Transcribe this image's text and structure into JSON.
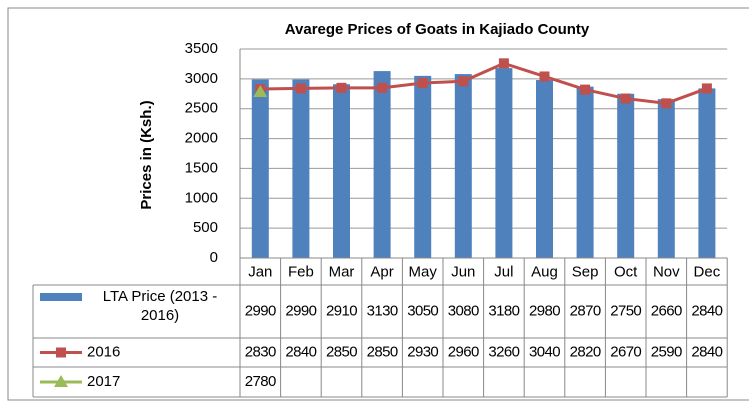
{
  "chart_data": {
    "type": "bar",
    "title": "Avarege Prices of Goats in Kajiado County",
    "y_label": "Prices in (Ksh.)",
    "categories": [
      "Jan",
      "Feb",
      "Mar",
      "Apr",
      "May",
      "Jun",
      "Jul",
      "Aug",
      "Sep",
      "Oct",
      "Nov",
      "Dec"
    ],
    "series": [
      {
        "name": "LTA Price (2013 - 2016)",
        "type": "bar",
        "color": "#4f81bd",
        "values": [
          2990,
          2990,
          2910,
          3130,
          3050,
          3080,
          3180,
          2980,
          2870,
          2750,
          2660,
          2840
        ]
      },
      {
        "name": "2016",
        "type": "line",
        "marker": "square",
        "color": "#c0504d",
        "values": [
          2830,
          2840,
          2850,
          2850,
          2930,
          2960,
          3260,
          3040,
          2820,
          2670,
          2590,
          2840
        ]
      },
      {
        "name": "2017",
        "type": "line",
        "marker": "triangle",
        "color": "#9bbb59",
        "values": [
          2780,
          null,
          null,
          null,
          null,
          null,
          null,
          null,
          null,
          null,
          null,
          null
        ]
      }
    ],
    "ylim": [
      0,
      3500
    ],
    "yticks": [
      0,
      500,
      1000,
      1500,
      2000,
      2500,
      3000,
      3500
    ],
    "grid": true,
    "data_table": true
  }
}
